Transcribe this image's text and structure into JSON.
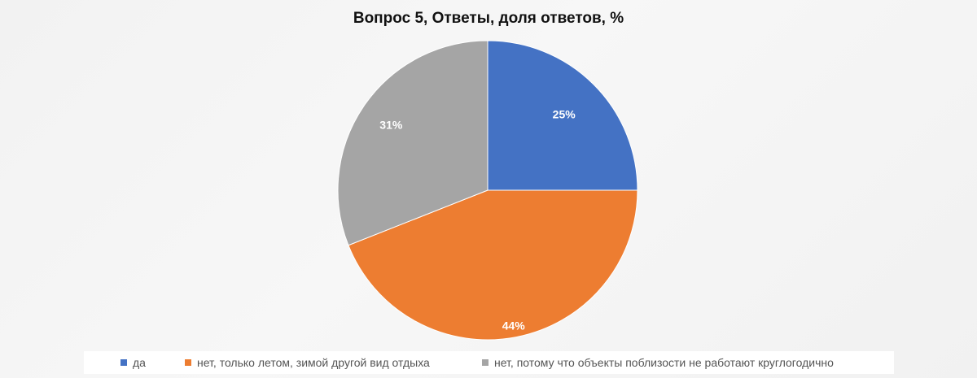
{
  "chart_data": {
    "type": "pie",
    "title": "Вопрос 5, Ответы, доля ответов, %",
    "categories": [
      "да",
      "нет, только летом, зимой другой вид отдыха",
      "нет, потому что объекты поблизости не работают круглогодично"
    ],
    "values": [
      25,
      44,
      31
    ],
    "data_labels": [
      "25%",
      "44%",
      "31%"
    ],
    "colors": [
      "#4472C4",
      "#ED7D31",
      "#A5A5A5"
    ],
    "legend_position": "bottom"
  }
}
